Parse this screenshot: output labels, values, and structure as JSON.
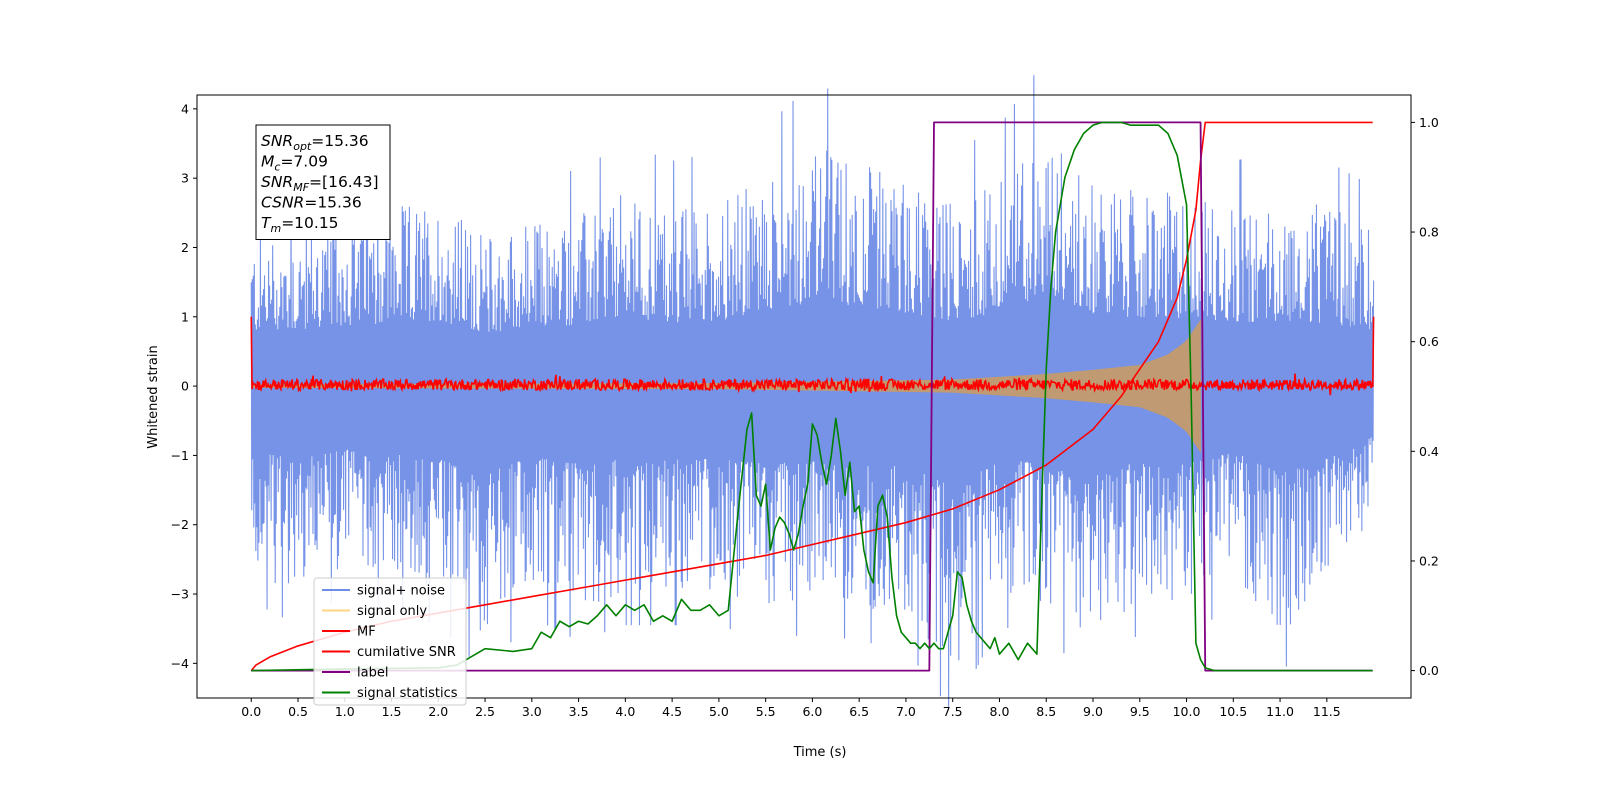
{
  "chart_data": {
    "type": "line",
    "xlabel": "Time (s)",
    "ylabel": "Whitened strain",
    "xlim": [
      -0.58,
      12.4
    ],
    "ylim": [
      -4.5,
      4.2
    ],
    "ylim_right": [
      -0.05,
      1.05
    ],
    "x_ticks": [
      0.0,
      0.5,
      1.0,
      1.5,
      2.0,
      2.5,
      3.0,
      3.5,
      4.0,
      4.5,
      5.0,
      5.5,
      6.0,
      6.5,
      7.0,
      7.5,
      8.0,
      8.5,
      9.0,
      9.5,
      10.0,
      10.5,
      11.0,
      11.5
    ],
    "x_tick_labels": [
      "0.0",
      "0.5",
      "1.0",
      "1.5",
      "2.0",
      "2.5",
      "3.0",
      "3.5",
      "4.0",
      "4.5",
      "5.0",
      "5.5",
      "6.0",
      "6.5",
      "7.0",
      "7.5",
      "8.0",
      "8.5",
      "9.0",
      "9.5",
      "10.0",
      "10.5",
      "11.0",
      "11.5"
    ],
    "y_ticks": [
      -4,
      -3,
      -2,
      -1,
      0,
      1,
      2,
      3,
      4
    ],
    "y_tick_labels": [
      "−4",
      "−3",
      "−2",
      "−1",
      "0",
      "1",
      "2",
      "3",
      "4"
    ],
    "y_ticks_right": [
      0.0,
      0.2,
      0.4,
      0.6,
      0.8,
      1.0
    ],
    "y_tick_labels_right": [
      "0.0",
      "0.2",
      "0.4",
      "0.6",
      "0.8",
      "1.0"
    ],
    "grid": false,
    "legend_position": "bottom-left",
    "annotation": {
      "lines": [
        {
          "base": "SNR",
          "sub": "opt",
          "value": "=15.36"
        },
        {
          "base": "M",
          "sub": "c",
          "value": "=7.09"
        },
        {
          "base": "SNR",
          "sub": "MF",
          "value": "=[16.43]"
        },
        {
          "base": "CSNR",
          "sub": "",
          "value": "=15.36"
        },
        {
          "base": "T",
          "sub": "m",
          "value": "=10.15"
        }
      ]
    },
    "series": [
      {
        "name": "signal+ noise",
        "axis": "left",
        "color": "#6f8de6",
        "kind": "noise-band",
        "x_range": [
          0.0,
          12.0
        ],
        "upper_envelope": {
          "x": [
            0,
            0.5,
            1,
            1.5,
            2,
            2.5,
            3,
            3.5,
            4,
            4.5,
            5,
            5.5,
            6,
            6.5,
            7,
            7.5,
            8,
            8.5,
            9,
            9.5,
            10,
            10.5,
            11,
            11.5,
            12
          ],
          "y": [
            2.2,
            2.3,
            2.5,
            2.6,
            2.7,
            2.2,
            2.4,
            2.5,
            2.8,
            2.6,
            2.7,
            3.0,
            3.5,
            3.3,
            3.0,
            2.7,
            3.0,
            3.8,
            3.0,
            2.8,
            2.8,
            2.6,
            2.7,
            2.6,
            2.3
          ]
        },
        "lower_envelope": {
          "x": [
            0,
            0.5,
            1,
            1.5,
            2,
            2.5,
            3,
            3.5,
            4,
            4.5,
            5,
            5.5,
            6,
            6.5,
            7,
            7.5,
            8,
            8.5,
            9,
            9.5,
            10,
            10.5,
            11,
            11.5,
            12
          ],
          "y": [
            -2.7,
            -3.0,
            -2.6,
            -2.8,
            -3.0,
            -3.6,
            -2.9,
            -3.2,
            -3.0,
            -3.0,
            -3.0,
            -3.2,
            -3.1,
            -3.2,
            -3.3,
            -4.1,
            -3.0,
            -3.2,
            -3.6,
            -3.1,
            -3.2,
            -2.7,
            -3.6,
            -3.0,
            -2.0
          ]
        }
      },
      {
        "name": "signal only",
        "axis": "left",
        "color": "#ffd580",
        "kind": "chirp-envelope",
        "x": [
          0,
          5.0,
          7.5,
          8.5,
          9.0,
          9.5,
          9.8,
          10.0,
          10.1,
          10.15
        ],
        "amplitude": [
          0.02,
          0.04,
          0.09,
          0.17,
          0.23,
          0.3,
          0.45,
          0.65,
          0.85,
          0.95
        ]
      },
      {
        "name": "MF",
        "axis": "left",
        "color": "#ff0000",
        "kind": "noisy-line",
        "x_range": [
          0.0,
          12.0
        ],
        "baseline": 0.02,
        "edge_values": [
          1.0,
          1.0
        ]
      },
      {
        "name": "cumilative SNR",
        "axis": "right",
        "color": "#ff0000",
        "x": [
          0.0,
          0.05,
          0.2,
          0.5,
          1.0,
          1.5,
          2.0,
          2.5,
          3.0,
          3.5,
          4.0,
          4.5,
          5.0,
          5.5,
          6.0,
          6.5,
          7.0,
          7.5,
          8.0,
          8.5,
          9.0,
          9.3,
          9.5,
          9.7,
          9.9,
          10.0,
          10.1,
          10.15,
          10.2,
          11.0,
          11.99
        ],
        "y": [
          0.0,
          0.01,
          0.025,
          0.045,
          0.07,
          0.09,
          0.105,
          0.12,
          0.135,
          0.15,
          0.165,
          0.18,
          0.195,
          0.21,
          0.23,
          0.25,
          0.27,
          0.295,
          0.33,
          0.375,
          0.44,
          0.5,
          0.55,
          0.6,
          0.68,
          0.75,
          0.84,
          0.93,
          1.0,
          1.0,
          1.0
        ]
      },
      {
        "name": "label",
        "axis": "right",
        "color": "#800080",
        "x": [
          0.0,
          7.25,
          7.3,
          10.15,
          10.2,
          11.99
        ],
        "y": [
          0,
          0,
          1,
          1,
          0,
          0
        ]
      },
      {
        "name": "signal statistics",
        "axis": "right",
        "color": "#008000",
        "x": [
          0.0,
          1.0,
          2.0,
          2.2,
          2.5,
          2.8,
          3.0,
          3.1,
          3.2,
          3.3,
          3.4,
          3.5,
          3.6,
          3.7,
          3.8,
          3.9,
          4.0,
          4.1,
          4.2,
          4.3,
          4.4,
          4.5,
          4.6,
          4.7,
          4.8,
          4.9,
          5.0,
          5.1,
          5.2,
          5.3,
          5.35,
          5.4,
          5.45,
          5.5,
          5.55,
          5.6,
          5.65,
          5.7,
          5.75,
          5.8,
          5.85,
          5.9,
          5.95,
          6.0,
          6.05,
          6.1,
          6.15,
          6.2,
          6.25,
          6.3,
          6.35,
          6.4,
          6.45,
          6.5,
          6.55,
          6.6,
          6.65,
          6.7,
          6.75,
          6.8,
          6.85,
          6.9,
          6.95,
          7.0,
          7.05,
          7.1,
          7.15,
          7.2,
          7.25,
          7.3,
          7.35,
          7.4,
          7.45,
          7.5,
          7.55,
          7.6,
          7.65,
          7.7,
          7.75,
          7.8,
          7.85,
          7.9,
          7.95,
          8.0,
          8.1,
          8.2,
          8.3,
          8.4,
          8.45,
          8.5,
          8.55,
          8.6,
          8.65,
          8.7,
          8.8,
          8.9,
          9.0,
          9.1,
          9.2,
          9.3,
          9.4,
          9.5,
          9.6,
          9.7,
          9.8,
          9.9,
          10.0,
          10.05,
          10.1,
          10.15,
          10.2,
          10.3,
          10.5,
          11.0,
          11.5,
          11.99
        ],
        "y": [
          0.0,
          0.003,
          0.005,
          0.01,
          0.04,
          0.035,
          0.04,
          0.07,
          0.06,
          0.09,
          0.08,
          0.09,
          0.085,
          0.1,
          0.12,
          0.1,
          0.12,
          0.11,
          0.12,
          0.09,
          0.1,
          0.09,
          0.13,
          0.11,
          0.11,
          0.12,
          0.1,
          0.11,
          0.28,
          0.44,
          0.47,
          0.32,
          0.3,
          0.34,
          0.22,
          0.26,
          0.28,
          0.27,
          0.25,
          0.22,
          0.25,
          0.3,
          0.34,
          0.45,
          0.43,
          0.38,
          0.34,
          0.39,
          0.46,
          0.4,
          0.32,
          0.38,
          0.29,
          0.3,
          0.22,
          0.18,
          0.16,
          0.3,
          0.32,
          0.28,
          0.17,
          0.1,
          0.07,
          0.06,
          0.05,
          0.05,
          0.04,
          0.05,
          0.04,
          0.05,
          0.04,
          0.04,
          0.07,
          0.1,
          0.18,
          0.17,
          0.12,
          0.09,
          0.07,
          0.06,
          0.05,
          0.04,
          0.06,
          0.03,
          0.05,
          0.02,
          0.05,
          0.03,
          0.3,
          0.55,
          0.7,
          0.8,
          0.85,
          0.9,
          0.95,
          0.98,
          0.995,
          1.0,
          1.0,
          1.0,
          0.995,
          0.995,
          0.995,
          0.995,
          0.98,
          0.94,
          0.85,
          0.5,
          0.05,
          0.02,
          0.005,
          0.0,
          0.0,
          0.0,
          0.0,
          0.0
        ]
      }
    ]
  }
}
